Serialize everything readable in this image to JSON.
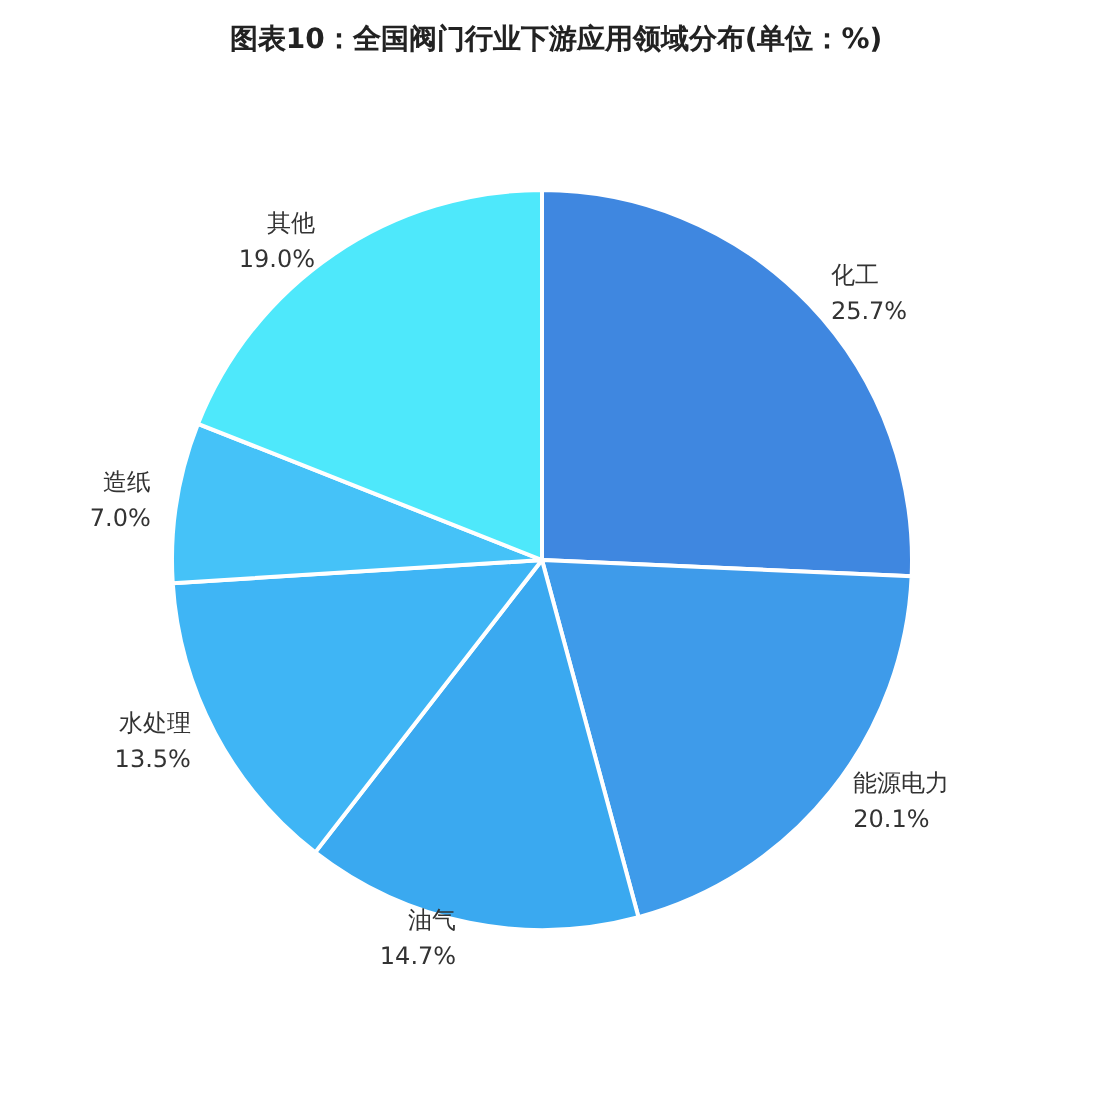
{
  "chart_data": {
    "type": "pie",
    "title": "图表10：全国阀门行业下游应用领域分布(单位：%)",
    "categories": [
      "化工",
      "能源电力",
      "油气",
      "水处理",
      "造纸",
      "其他"
    ],
    "values": [
      25.7,
      20.1,
      14.7,
      13.5,
      7.0,
      19.0
    ],
    "value_labels": [
      "25.7%",
      "20.1%",
      "14.7%",
      "13.5%",
      "7.0%",
      "19.0%"
    ],
    "colors": [
      "#3f87e0",
      "#3e9bea",
      "#3aa9f0",
      "#3fb5f5",
      "#45c2f8",
      "#4ee8fb"
    ],
    "legend": false
  }
}
